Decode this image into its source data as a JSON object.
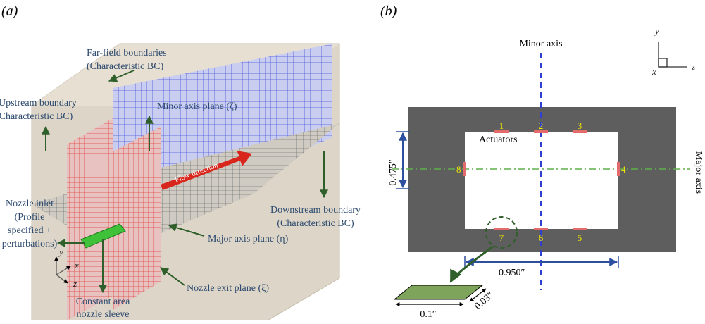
{
  "panel_a": {
    "label": "(a)",
    "far_field": [
      "Far-field boundaries",
      "(Characteristic BC)"
    ],
    "upstream": [
      "Upstream boundary",
      "(Characteristic BC)"
    ],
    "minor_plane": "Minor axis plane (ζ)",
    "flow": "Flow direction",
    "nozzle_inlet": [
      "Nozzle inlet",
      "(Profile",
      "specified +",
      "perturbations)"
    ],
    "major_plane": "Major axis plane (η)",
    "downstream": [
      "Downstream boundary",
      "(Characteristic BC)"
    ],
    "exit_plane": "Nozzle exit plane (ξ)",
    "sleeve": [
      "Constant area",
      "nozzle sleeve"
    ],
    "axes": [
      "y",
      "x",
      "z"
    ]
  },
  "panel_b": {
    "label": "(b)",
    "minor_axis": "Minor axis",
    "major_axis": "Major axis",
    "actuators": "Actuators",
    "actuator_ids": [
      "1",
      "2",
      "3",
      "4",
      "5",
      "6",
      "7",
      "8"
    ],
    "height": "0.475″",
    "width": "0.950″",
    "actuator_length": "0.1″",
    "actuator_width": "0.03″",
    "axes": [
      "y",
      "x",
      "z"
    ]
  }
}
